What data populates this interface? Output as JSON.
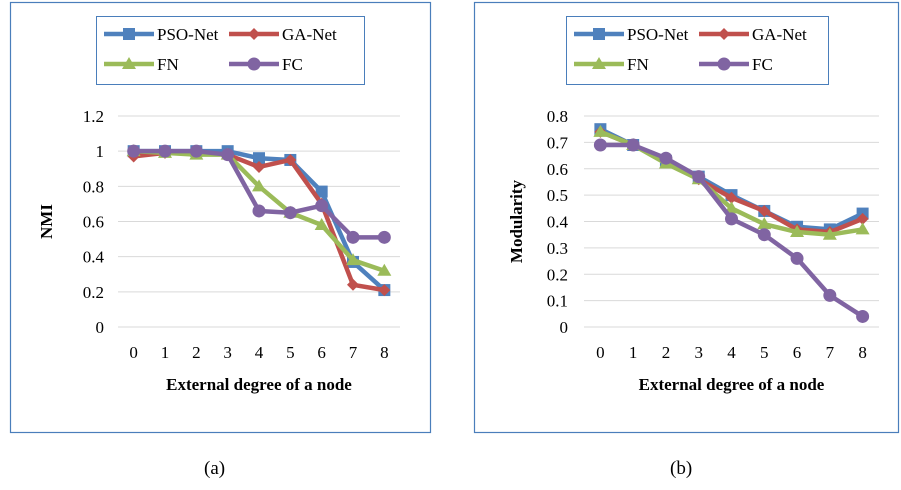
{
  "captions": [
    "(a)",
    "(b)"
  ],
  "colors": {
    "frame": "#4a7ebb",
    "grid": "#d9d9d9",
    "series": [
      "#4f81bd",
      "#c0504d",
      "#9bbb59",
      "#8064a2"
    ]
  },
  "chart_data": [
    {
      "type": "line",
      "title": "",
      "xlabel": "External degree of a node",
      "ylabel": "NMI",
      "x": [
        0,
        1,
        2,
        3,
        4,
        5,
        6,
        7,
        8
      ],
      "ylim": [
        0,
        1.2
      ],
      "yticks": [
        "0",
        "0.2",
        "0.4",
        "0.6",
        "0.8",
        "1",
        "1.2"
      ],
      "grid": true,
      "legend_position": "top",
      "series": [
        {
          "name": "PSO-Net",
          "marker": "square",
          "values": [
            1.0,
            1.0,
            1.0,
            1.0,
            0.96,
            0.95,
            0.77,
            0.37,
            0.21
          ]
        },
        {
          "name": "GA-Net",
          "marker": "diamond",
          "values": [
            0.97,
            0.99,
            0.99,
            0.98,
            0.91,
            0.95,
            0.7,
            0.24,
            0.21
          ]
        },
        {
          "name": "FN",
          "marker": "triangle",
          "values": [
            1.0,
            0.99,
            0.98,
            0.98,
            0.8,
            0.65,
            0.58,
            0.38,
            0.32
          ]
        },
        {
          "name": "FC",
          "marker": "circle",
          "values": [
            1.0,
            1.0,
            1.0,
            0.98,
            0.66,
            0.65,
            0.69,
            0.51,
            0.51
          ]
        }
      ]
    },
    {
      "type": "line",
      "title": "",
      "xlabel": "External degree of a node",
      "ylabel": "Modularity",
      "x": [
        0,
        1,
        2,
        3,
        4,
        5,
        6,
        7,
        8
      ],
      "ylim": [
        0,
        0.8
      ],
      "yticks": [
        "0",
        "0.1",
        "0.2",
        "0.3",
        "0.4",
        "0.5",
        "0.6",
        "0.7",
        "0.8"
      ],
      "grid": true,
      "legend_position": "top",
      "series": [
        {
          "name": "PSO-Net",
          "marker": "square",
          "values": [
            0.75,
            0.69,
            0.63,
            0.57,
            0.5,
            0.44,
            0.38,
            0.37,
            0.43
          ]
        },
        {
          "name": "GA-Net",
          "marker": "diamond",
          "values": [
            0.74,
            0.69,
            0.63,
            0.56,
            0.49,
            0.44,
            0.37,
            0.36,
            0.41
          ]
        },
        {
          "name": "FN",
          "marker": "triangle",
          "values": [
            0.74,
            0.69,
            0.62,
            0.56,
            0.45,
            0.39,
            0.36,
            0.35,
            0.37
          ]
        },
        {
          "name": "FC",
          "marker": "circle",
          "values": [
            0.69,
            0.69,
            0.64,
            0.57,
            0.41,
            0.35,
            0.26,
            0.12,
            0.04
          ]
        }
      ]
    }
  ]
}
